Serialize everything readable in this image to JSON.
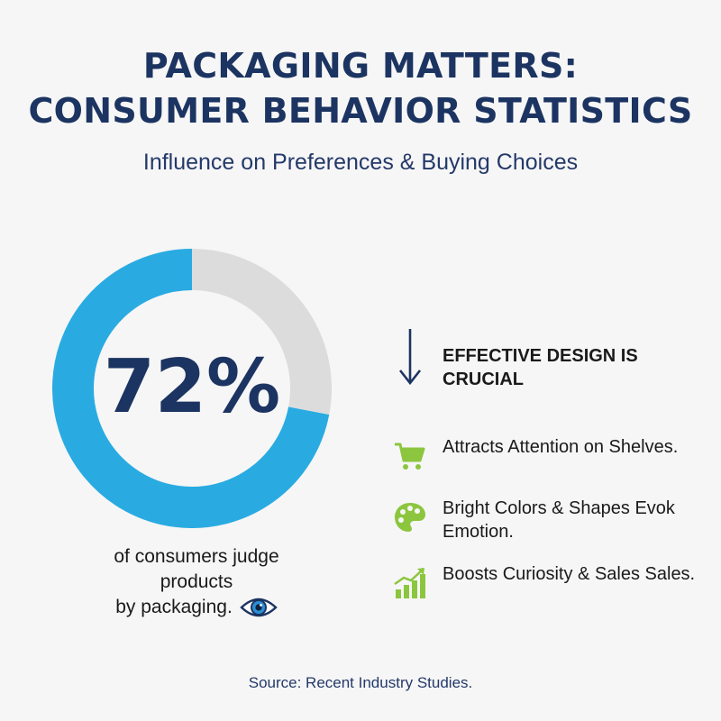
{
  "title_line1": "PACKAGING MATTERS:",
  "title_line2": "CONSUMER BEHAVIOR STATISTICS",
  "subtitle": "Influence on Preferences & Buying Choices",
  "caption": {
    "line1": "of consumers judge",
    "line2": "products",
    "line3": "by packaging."
  },
  "heading": "EFFECTIVE DESIGN IS CRUCIAL",
  "benefits": [
    {
      "icon": "shopping-cart-icon",
      "text": "Attracts Attention on Shelves."
    },
    {
      "icon": "palette-icon",
      "text": "Bright Colors & Shapes Evok Emotion."
    },
    {
      "icon": "growth-chart-icon",
      "text": "Boosts Curiosity & Sales Sales."
    }
  ],
  "source": "Source: Recent Industry Studies.",
  "colors": {
    "accent": "#29abe2",
    "track": "#dcdcdc",
    "navy": "#1c3461",
    "icon_green": "#8cc63f",
    "background": "#f6f6f6"
  },
  "chart_data": {
    "type": "pie",
    "label": "72%",
    "values": [
      72,
      28
    ],
    "unit": "%"
  }
}
